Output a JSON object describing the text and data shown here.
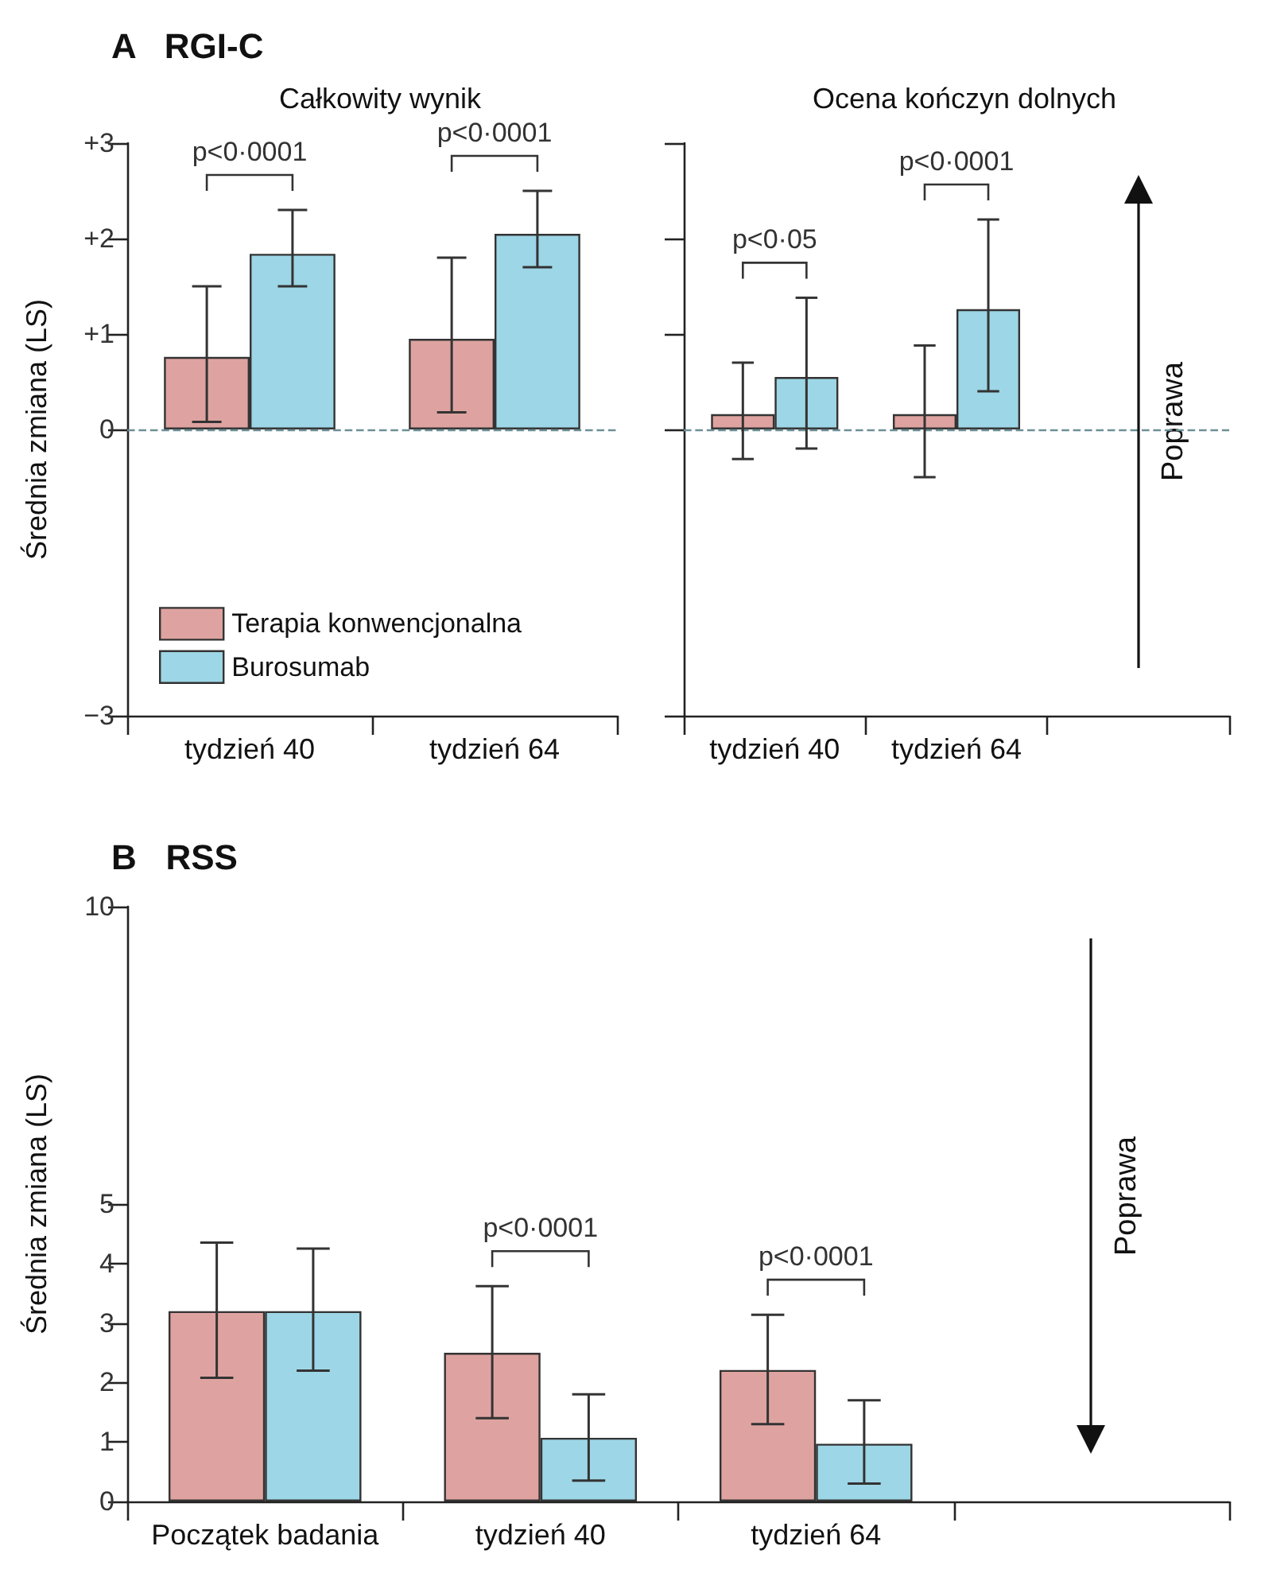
{
  "chart_data": [
    {
      "type": "bar",
      "title": "A   RGI-C",
      "subtitle": "Całkowity wynik",
      "ylabel": "Średnia zmiana (LS)",
      "annotations": [
        "p<0·0001",
        "p<0·0001"
      ],
      "categories": [
        "tydzień 40",
        "tydzień 64"
      ],
      "series": [
        {
          "name": "Terapia konwencjonalna",
          "color": "#dea3a0",
          "values": [
            0.76,
            0.95
          ],
          "errors": [
            [
              0.08,
              1.5
            ],
            [
              0.18,
              1.8
            ]
          ]
        },
        {
          "name": "Burosumab",
          "color": "#9dd6e6",
          "values": [
            1.84,
            2.05
          ],
          "errors": [
            [
              1.5,
              2.3
            ],
            [
              1.7,
              2.5
            ]
          ]
        }
      ],
      "ylim": [
        -3,
        3
      ],
      "yticks": [
        {
          "value": -3,
          "label": "−3"
        },
        0,
        {
          "value": 1,
          "label": "+1"
        },
        {
          "value": 2,
          "label": "+2"
        },
        {
          "value": 3,
          "label": "+3"
        }
      ],
      "ref_lines": [
        {
          "axis": "y",
          "value": 0,
          "color": "#6d8f96",
          "line_style": "dashed"
        }
      ],
      "legend": "bottom left"
    },
    {
      "type": "bar",
      "subtitle": "Ocena kończyn dolnych",
      "y2label": "Poprawa",
      "annotations": [
        "p<0·05",
        "p<0·0001"
      ],
      "categories": [
        "tydzień 40",
        "tydzień 64",
        null
      ],
      "series": [
        {
          "color": "#dea3a0",
          "values": [
            0.16,
            0.16,
            null
          ],
          "errors": [
            [
              -0.31,
              0.7
            ],
            [
              -0.5,
              0.88
            ],
            null
          ]
        },
        {
          "color": "#9dd6e6",
          "values": [
            0.55,
            1.26,
            null
          ],
          "errors": [
            [
              -0.2,
              1.38
            ],
            [
              0.4,
              2.2
            ],
            null
          ]
        }
      ],
      "ylim": [
        -3,
        3
      ],
      "yticks": [
        -3,
        0,
        1,
        2,
        3
      ],
      "tick_labels": "x",
      "ref_lines": [
        {
          "axis": "y",
          "value": 0,
          "color": "#6d8f96",
          "line_style": "dashed"
        }
      ]
    },
    {
      "type": "bar",
      "title": "B   RSS",
      "ylabel": "Średnia zmiana (LS)",
      "y2label": "Poprawa",
      "annotations": [
        "p<0·0001",
        "p<0·0001"
      ],
      "categories": [
        "Początek badania",
        "tydzień 40",
        "tydzień 64",
        null
      ],
      "series": [
        {
          "color": "#dea3a0",
          "values": [
            3.2,
            2.5,
            2.21,
            null
          ],
          "errors": [
            [
              2.08,
              4.35
            ],
            [
              1.4,
              3.62
            ],
            [
              1.3,
              3.14
            ],
            null
          ]
        },
        {
          "color": "#9dd6e6",
          "values": [
            3.2,
            1.07,
            0.97,
            null
          ],
          "errors": [
            [
              2.2,
              4.25
            ],
            [
              0.35,
              1.8
            ],
            [
              0.3,
              1.7
            ],
            null
          ]
        }
      ],
      "ylim": [
        0,
        10
      ],
      "yticks": [
        0,
        1,
        2,
        3,
        4,
        5,
        10
      ]
    }
  ]
}
